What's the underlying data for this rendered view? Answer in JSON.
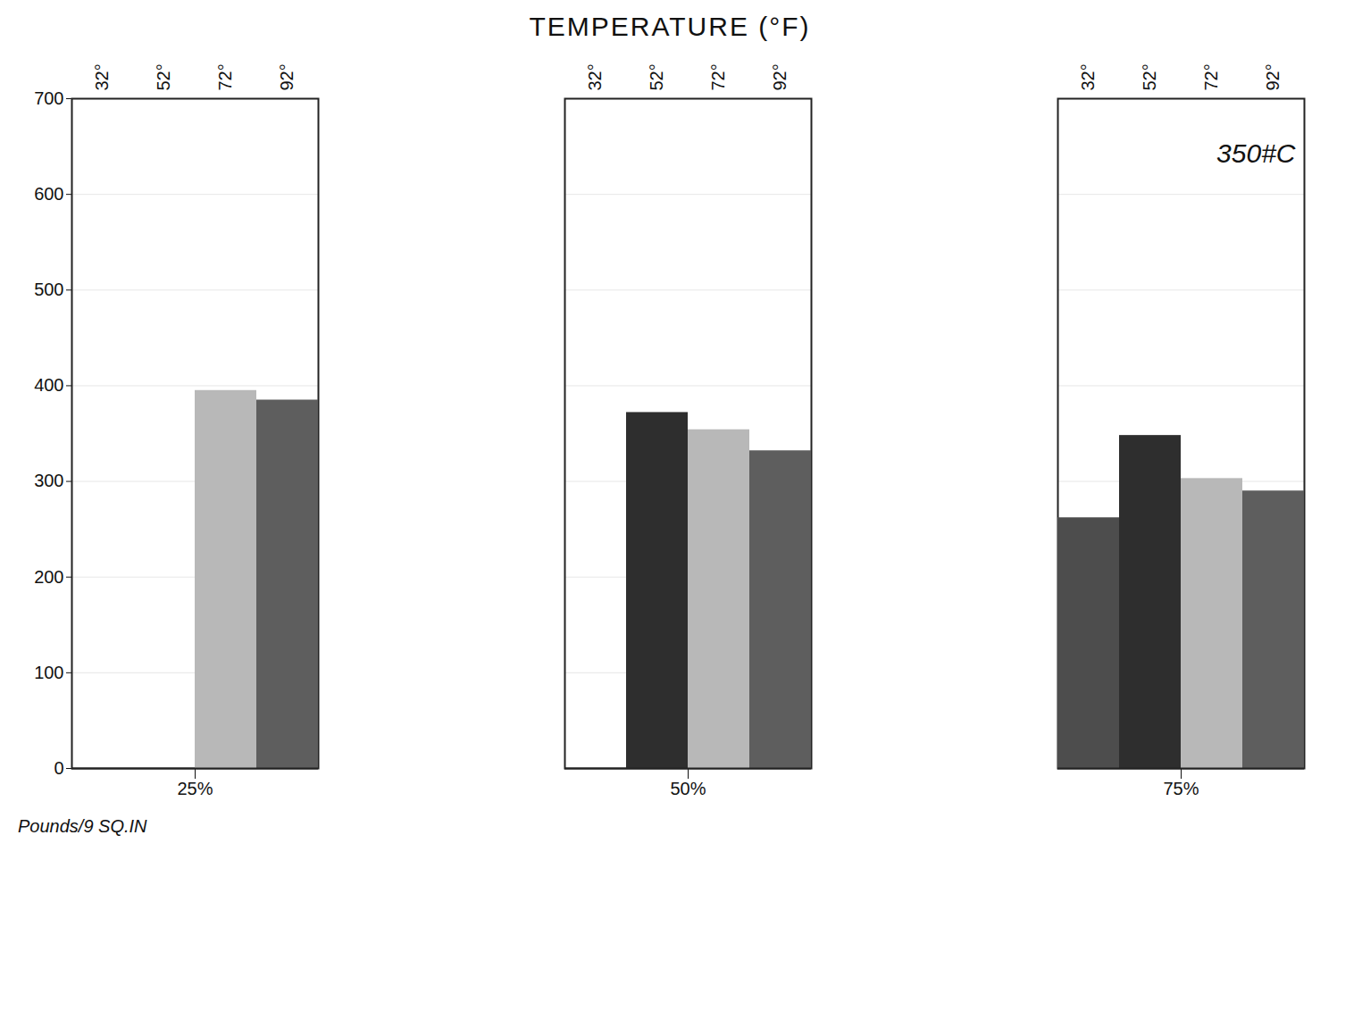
{
  "chart_data": {
    "type": "bar",
    "xlabel": "TEMPERATURE (°F)",
    "ylabel": "Pounds/9 SQ.IN",
    "categories": [
      "25%",
      "50%",
      "75%"
    ],
    "series": [
      {
        "name": "32°",
        "color": "#4d4d4d",
        "values": [
          null,
          null,
          262
        ]
      },
      {
        "name": "52°",
        "color": "#2e2e2e",
        "values": [
          null,
          372,
          348
        ]
      },
      {
        "name": "72°",
        "color": "#b8b8b8",
        "values": [
          395,
          354,
          303
        ]
      },
      {
        "name": "92°",
        "color": "#5e5e5e",
        "values": [
          385,
          332,
          290
        ]
      }
    ],
    "ylim": [
      0,
      700
    ],
    "yticks": [
      0,
      100,
      200,
      300,
      400,
      500,
      600,
      700
    ],
    "grid": true,
    "annotations": [
      "350#C"
    ]
  }
}
